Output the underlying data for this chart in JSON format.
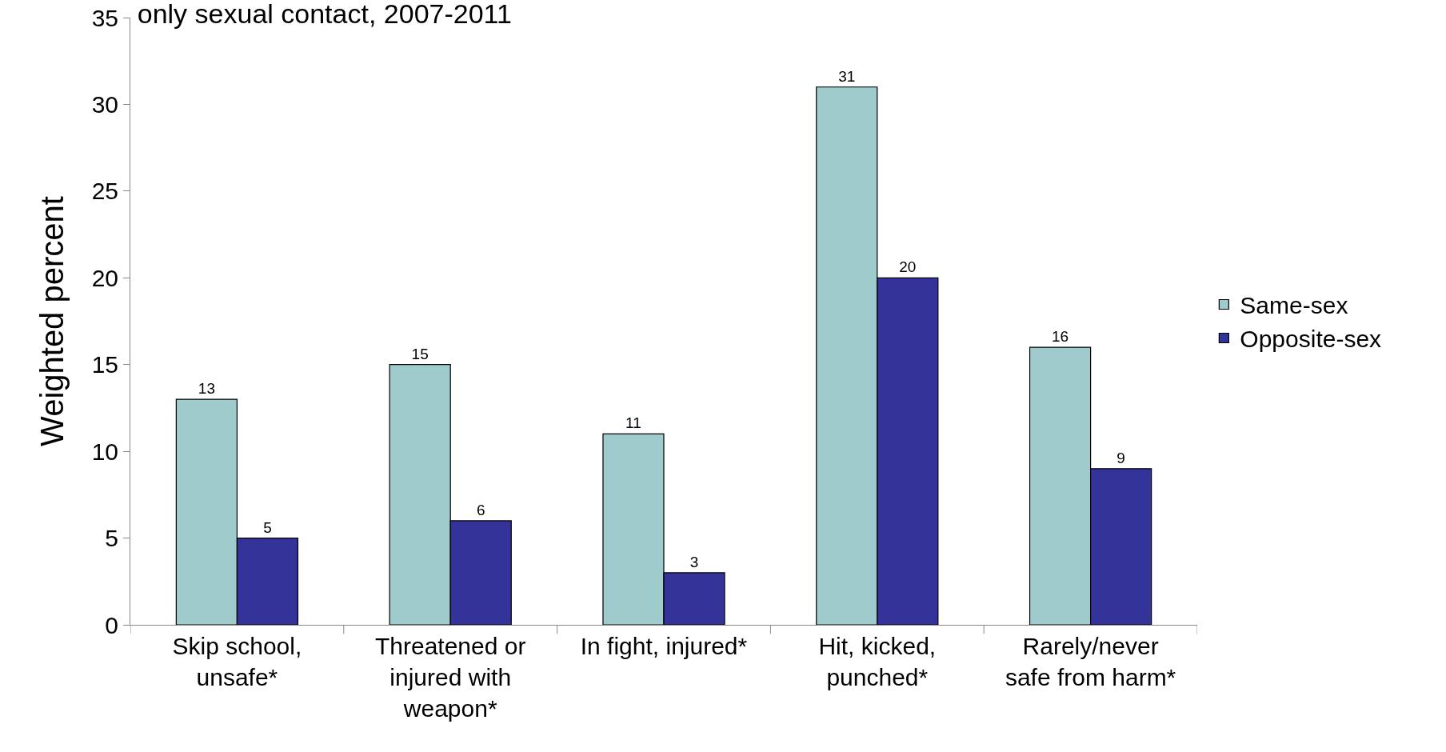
{
  "chart_data": {
    "type": "bar",
    "title": "only sexual contact, 2007-2011",
    "ylabel": "Weighted percent",
    "categories": [
      "Skip school,\nunsafe*",
      "Threatened or\ninjured with\nweapon*",
      "In fight, injured*",
      "Hit, kicked,\npunched*",
      "Rarely/never\nsafe from harm*"
    ],
    "series": [
      {
        "name": "Same-sex",
        "color": "#9fcbcd",
        "values": [
          13,
          15,
          11,
          31,
          16
        ]
      },
      {
        "name": "Opposite-sex",
        "color": "#333399",
        "values": [
          5,
          6,
          3,
          20,
          9
        ]
      }
    ],
    "ylim": [
      0,
      35
    ],
    "yticks": [
      0,
      5,
      10,
      15,
      20,
      25,
      30,
      35
    ],
    "data_labels": true,
    "grid": false,
    "legend": "right"
  }
}
